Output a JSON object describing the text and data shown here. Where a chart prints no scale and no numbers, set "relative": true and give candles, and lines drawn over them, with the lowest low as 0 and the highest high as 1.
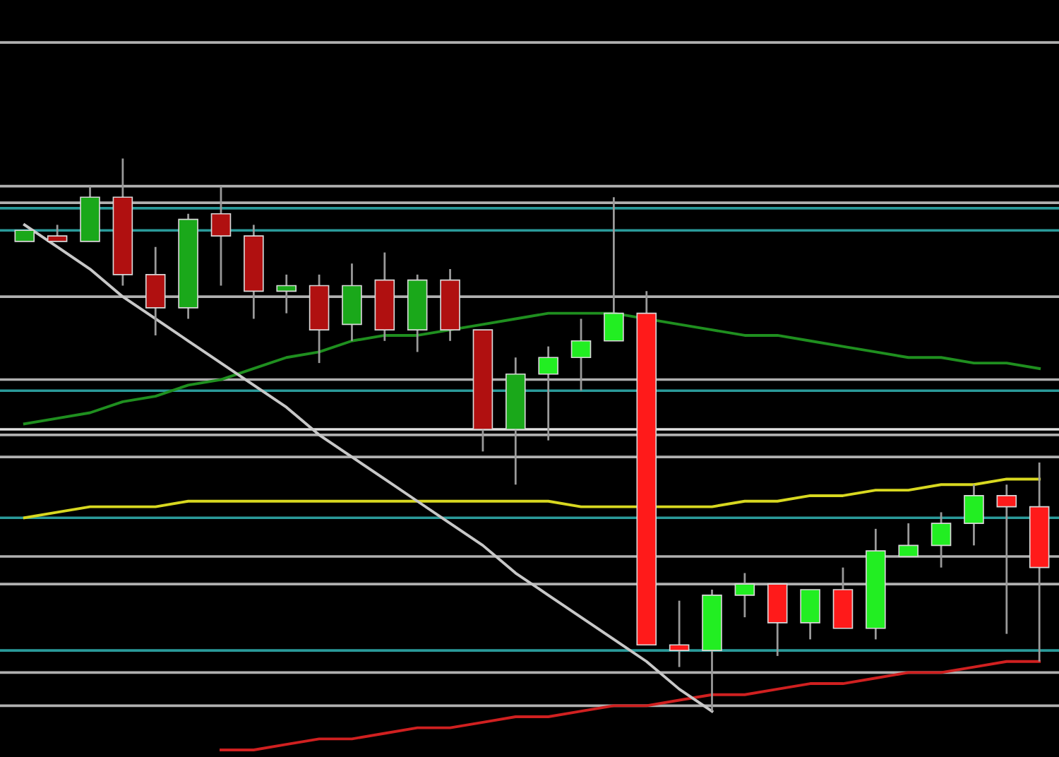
{
  "chart_data": {
    "type": "candlestick",
    "relative": true,
    "categories": [
      null,
      null,
      null,
      null,
      null,
      null,
      null,
      null,
      null,
      null,
      null,
      null,
      null,
      null,
      null,
      null,
      null,
      null,
      null,
      null,
      null,
      null,
      null,
      null,
      null,
      null,
      null,
      null,
      null,
      null,
      null,
      null
    ],
    "ohlc": [
      [
        0.85,
        0.87,
        0.85,
        0.87
      ],
      [
        0.86,
        0.88,
        0.85,
        0.85
      ],
      [
        0.85,
        0.95,
        0.85,
        0.93
      ],
      [
        0.93,
        1.0,
        0.77,
        0.79
      ],
      [
        0.79,
        0.84,
        0.68,
        0.73
      ],
      [
        0.73,
        0.9,
        0.71,
        0.89
      ],
      [
        0.9,
        0.95,
        0.77,
        0.86
      ],
      [
        0.86,
        0.88,
        0.71,
        0.76
      ],
      [
        0.76,
        0.79,
        0.72,
        0.77
      ],
      [
        0.77,
        0.79,
        0.63,
        0.69
      ],
      [
        0.7,
        0.81,
        0.67,
        0.77
      ],
      [
        0.78,
        0.83,
        0.67,
        0.69
      ],
      [
        0.69,
        0.79,
        0.65,
        0.78
      ],
      [
        0.78,
        0.8,
        0.67,
        0.69
      ],
      [
        0.69,
        0.69,
        0.47,
        0.51
      ],
      [
        0.51,
        0.64,
        0.41,
        0.61
      ],
      [
        0.61,
        0.66,
        0.49,
        0.64
      ],
      [
        0.64,
        0.71,
        0.58,
        0.67
      ],
      [
        0.67,
        0.93,
        0.67,
        0.72
      ],
      [
        0.72,
        0.76,
        0.12,
        0.12
      ],
      [
        0.12,
        0.2,
        0.08,
        0.11
      ],
      [
        0.11,
        0.22,
        0.0,
        0.21
      ],
      [
        0.21,
        0.25,
        0.17,
        0.23
      ],
      [
        0.23,
        0.23,
        0.1,
        0.16
      ],
      [
        0.16,
        0.22,
        0.13,
        0.22
      ],
      [
        0.22,
        0.26,
        0.15,
        0.15
      ],
      [
        0.15,
        0.33,
        0.13,
        0.29
      ],
      [
        0.28,
        0.34,
        0.28,
        0.3
      ],
      [
        0.3,
        0.36,
        0.26,
        0.34
      ],
      [
        0.34,
        0.41,
        0.3,
        0.39
      ],
      [
        0.39,
        0.41,
        0.14,
        0.37
      ],
      [
        0.37,
        0.45,
        0.09,
        0.26
      ]
    ],
    "colors": [
      "#1aa81a",
      "#b01010",
      "#1aa81a",
      "#b01010",
      "#b01010",
      "#1aa81a",
      "#b01010",
      "#b01010",
      "#1aa81a",
      "#b01010",
      "#1aa81a",
      "#b01010",
      "#1aa81a",
      "#b01010",
      "#b01010",
      "#1aa81a",
      "#22ee22",
      "#22ee22",
      "#22ee22",
      "#ff1a1a",
      "#ff1a1a",
      "#22ee22",
      "#22ee22",
      "#ff1a1a",
      "#22ee22",
      "#ff1a1a",
      "#22ee22",
      "#22ee22",
      "#22ee22",
      "#22ee22",
      "#ff1a1a",
      "#ff1a1a"
    ],
    "series": [
      {
        "type": "line",
        "color": "#1f8f1f",
        "values": [
          0.52,
          0.53,
          0.54,
          0.56,
          0.57,
          0.59,
          0.6,
          0.62,
          0.64,
          0.65,
          0.67,
          0.68,
          0.68,
          0.69,
          0.7,
          0.71,
          0.72,
          0.72,
          0.72,
          null,
          0.7,
          0.69,
          0.68,
          0.68,
          0.67,
          0.66,
          0.65,
          0.64,
          0.64,
          0.63,
          0.63,
          0.62
        ]
      },
      {
        "type": "line",
        "color": "#d8d820",
        "values": [
          0.35,
          0.36,
          0.37,
          0.37,
          0.37,
          0.38,
          0.38,
          0.38,
          0.38,
          0.38,
          0.38,
          0.38,
          0.38,
          0.38,
          0.38,
          0.38,
          0.38,
          0.37,
          0.37,
          null,
          0.37,
          0.37,
          0.38,
          0.38,
          0.39,
          0.39,
          0.4,
          0.4,
          0.41,
          0.41,
          0.42,
          0.42
        ]
      },
      {
        "type": "line",
        "color": "#d02020",
        "values": [
          null,
          null,
          null,
          null,
          null,
          null,
          -0.07,
          -0.07,
          -0.06,
          -0.05,
          -0.05,
          -0.04,
          -0.03,
          -0.03,
          -0.02,
          -0.01,
          -0.01,
          0.0,
          0.01,
          0.01,
          0.02,
          0.03,
          0.03,
          0.04,
          0.05,
          0.05,
          0.06,
          0.07,
          0.07,
          0.08,
          0.09,
          0.09
        ]
      },
      {
        "type": "line",
        "color": "#c8c8c8",
        "values": [
          0.88,
          0.84,
          0.8,
          0.75,
          0.71,
          0.67,
          0.63,
          0.59,
          0.55,
          0.5,
          0.46,
          0.42,
          0.38,
          0.34,
          0.3,
          0.25,
          0.21,
          0.17,
          0.13,
          0.09,
          0.04,
          0.0,
          null,
          null,
          null,
          null,
          null,
          null,
          null,
          null,
          null,
          null
        ]
      }
    ],
    "ref_lines": [
      {
        "axis": "y",
        "value": 1.21,
        "color": "#b0b0b0"
      },
      {
        "axis": "y",
        "value": 0.95,
        "color": "#b0b0b0"
      },
      {
        "axis": "y",
        "value": 0.92,
        "color": "#b0b0b0"
      },
      {
        "axis": "y",
        "value": 0.91,
        "color": "#2a9a9a"
      },
      {
        "axis": "y",
        "value": 0.87,
        "color": "#2a9a9a"
      },
      {
        "axis": "y",
        "value": 0.75,
        "color": "#b0b0b0"
      },
      {
        "axis": "y",
        "value": 0.6,
        "color": "#b0b0b0"
      },
      {
        "axis": "y",
        "value": 0.58,
        "color": "#2a9a9a"
      },
      {
        "axis": "y",
        "value": 0.51,
        "color": "#e0e0e0"
      },
      {
        "axis": "y",
        "value": 0.5,
        "color": "#b0b0b0"
      },
      {
        "axis": "y",
        "value": 0.46,
        "color": "#b0b0b0"
      },
      {
        "axis": "y",
        "value": 0.35,
        "color": "#2a9a9a"
      },
      {
        "axis": "y",
        "value": 0.28,
        "color": "#b0b0b0"
      },
      {
        "axis": "y",
        "value": 0.23,
        "color": "#b0b0b0"
      },
      {
        "axis": "y",
        "value": 0.11,
        "color": "#2a9a9a"
      },
      {
        "axis": "y",
        "value": 0.07,
        "color": "#b0b0b0"
      },
      {
        "axis": "y",
        "value": 0.01,
        "color": "#b0b0b0"
      }
    ]
  }
}
